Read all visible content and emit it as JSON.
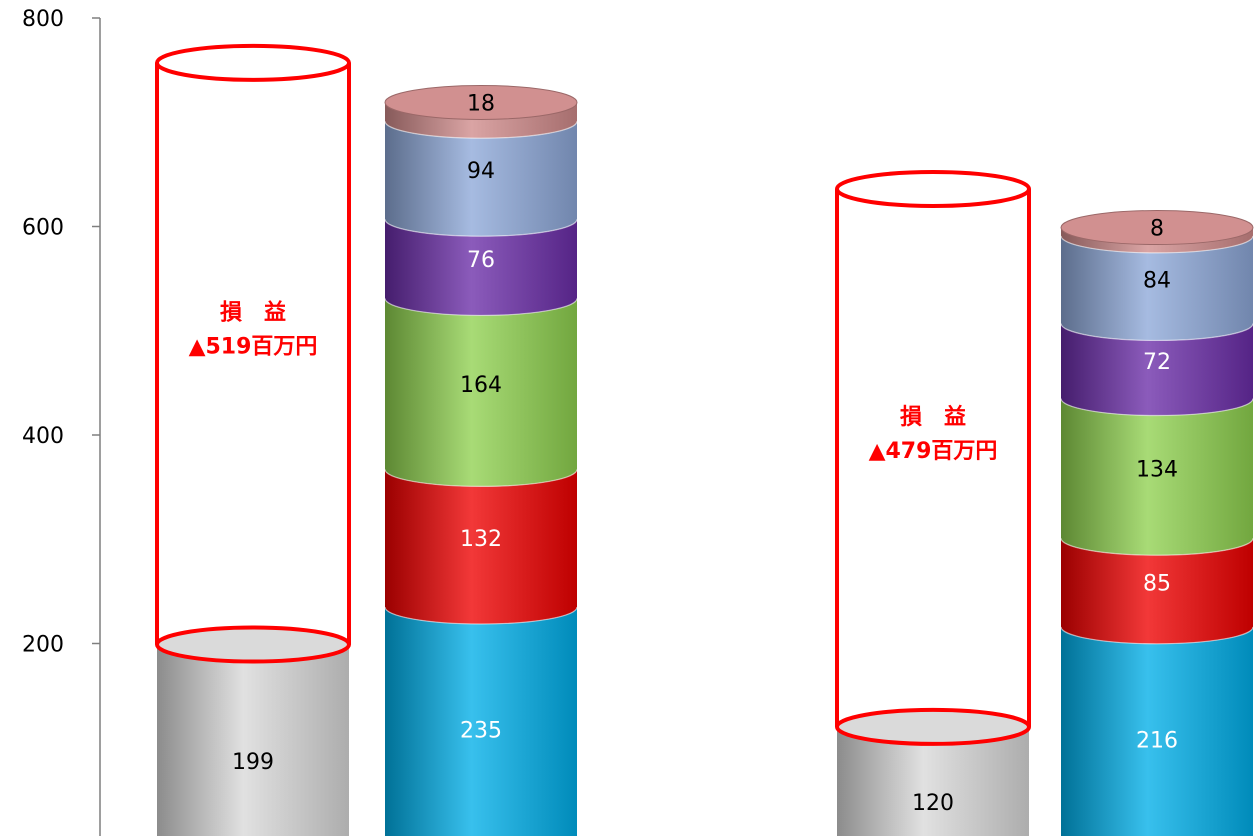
{
  "chart_data": {
    "type": "bar",
    "stacked": true,
    "style": "3d-cylinder",
    "ylim": [
      0,
      800
    ],
    "yticks": [
      "800",
      "600",
      "400",
      "200"
    ],
    "colors": {
      "revenue": "#d8d8d8",
      "loss_outline": "#ff0000",
      "seg1": "#00aee8",
      "seg2": "#ee0000",
      "seg3": "#8fd14f",
      "seg4": "#6a2da8",
      "seg5": "#8da8d8",
      "seg6": "#cf8a8a"
    },
    "groups": [
      {
        "revenue": {
          "value": 199,
          "label": "199"
        },
        "loss_total": 757,
        "annotation": {
          "line1": "損　益",
          "line2": "▲519百万円"
        },
        "expenses": [
          {
            "value": 235,
            "label": "235"
          },
          {
            "value": 132,
            "label": "132"
          },
          {
            "value": 164,
            "label": "164"
          },
          {
            "value": 76,
            "label": "76"
          },
          {
            "value": 94,
            "label": "94"
          },
          {
            "value": 18,
            "label": "18"
          }
        ]
      },
      {
        "revenue": {
          "value": 120,
          "label": "120"
        },
        "loss_total": 636,
        "annotation": {
          "line1": "損　益",
          "line2": "▲479百万円"
        },
        "expenses": [
          {
            "value": 216,
            "label": "216"
          },
          {
            "value": 85,
            "label": "85"
          },
          {
            "value": 134,
            "label": "134"
          },
          {
            "value": 72,
            "label": "72"
          },
          {
            "value": 84,
            "label": "84"
          },
          {
            "value": 8,
            "label": "8"
          }
        ]
      }
    ]
  }
}
